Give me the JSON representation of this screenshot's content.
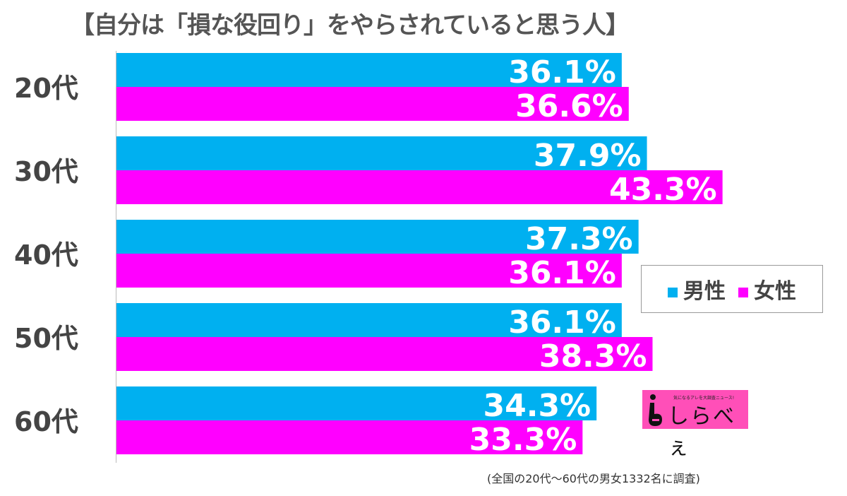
{
  "chart_data": {
    "type": "bar",
    "orientation": "horizontal",
    "title": "【自分は「損な役回り」をやらされていると思う人】",
    "categories": [
      "20代",
      "30代",
      "40代",
      "50代",
      "60代"
    ],
    "series": [
      {
        "name": "男性",
        "color": "#00b0f0",
        "values": [
          36.1,
          37.9,
          37.3,
          36.1,
          34.3
        ],
        "labels": [
          "36.1%",
          "37.9%",
          "37.3%",
          "36.1%",
          "34.3%"
        ]
      },
      {
        "name": "女性",
        "color": "#ff00ff",
        "values": [
          36.6,
          43.3,
          36.1,
          38.3,
          33.3
        ],
        "labels": [
          "36.6%",
          "43.3%",
          "36.1%",
          "38.3%",
          "33.3%"
        ]
      }
    ],
    "xlim": [
      0,
      52
    ],
    "grid": false,
    "legend_position": "right",
    "note": "(全国の20代～60代の男女1332名に調査)"
  },
  "logo": {
    "text": "しらべぇ",
    "tagline": "気になるアレを大調査ニュース!"
  }
}
